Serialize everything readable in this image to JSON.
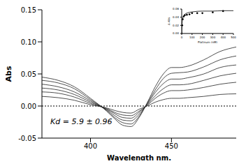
{
  "chart_data": [
    {
      "type": "line",
      "x_label": "Wavelength nm.",
      "y_label": "Abs",
      "annotation": "Kd = 5.9 ± 0.96",
      "x": [
        370,
        380,
        390,
        400,
        410,
        415,
        420,
        425,
        430,
        435,
        440,
        445,
        450,
        455,
        460,
        470,
        480,
        490
      ],
      "xlim": [
        370,
        490
      ],
      "xticks": [
        400,
        450
      ],
      "ylim": [
        -0.05,
        0.15
      ],
      "yticks": [
        {
          "value": -0.05,
          "label": "-0.05"
        },
        {
          "value": 0,
          "label": "0.00"
        },
        {
          "value": 0.05,
          "label": "0.05"
        },
        {
          "value": 0.1,
          "label": "0.10"
        },
        {
          "value": 0.15,
          "label": "0.15"
        }
      ],
      "series": [
        {
          "color": "#222222",
          "values": [
            0.045,
            0.04,
            0.03,
            0.012,
            -0.008,
            -0.02,
            -0.03,
            -0.032,
            -0.018,
            0.005,
            0.03,
            0.05,
            0.06,
            0.06,
            0.062,
            0.072,
            0.085,
            0.092
          ]
        },
        {
          "color": "#222222",
          "values": [
            0.04,
            0.036,
            0.027,
            0.01,
            -0.007,
            -0.018,
            -0.026,
            -0.028,
            -0.016,
            0.004,
            0.025,
            0.043,
            0.051,
            0.052,
            0.053,
            0.061,
            0.072,
            0.078
          ]
        },
        {
          "color": "#222222",
          "values": [
            0.034,
            0.03,
            0.022,
            0.008,
            -0.006,
            -0.015,
            -0.022,
            -0.023,
            -0.013,
            0.003,
            0.021,
            0.035,
            0.042,
            0.042,
            0.044,
            0.05,
            0.06,
            0.064
          ]
        },
        {
          "color": "#222222",
          "values": [
            0.028,
            0.025,
            0.018,
            0.006,
            -0.005,
            -0.012,
            -0.018,
            -0.019,
            -0.01,
            0.002,
            0.016,
            0.027,
            0.033,
            0.033,
            0.034,
            0.04,
            0.047,
            0.051
          ]
        },
        {
          "color": "#222222",
          "values": [
            0.022,
            0.02,
            0.014,
            0.004,
            -0.004,
            -0.01,
            -0.014,
            -0.015,
            -0.008,
            0.001,
            0.012,
            0.02,
            0.024,
            0.024,
            0.025,
            0.029,
            0.034,
            0.037
          ]
        },
        {
          "color": "#222222",
          "values": [
            0.015,
            0.013,
            0.009,
            0.002,
            -0.003,
            -0.007,
            -0.01,
            -0.011,
            -0.005,
            0.0,
            0.006,
            0.01,
            0.012,
            0.012,
            0.013,
            0.015,
            0.018,
            0.019
          ]
        }
      ]
    },
    {
      "type": "scatter",
      "x_label": "Platinum (nM)",
      "y_label": "Δ Abs",
      "xlim": [
        0,
        500
      ],
      "xticks": [
        0,
        100,
        200,
        300,
        400,
        500
      ],
      "ylim": [
        0,
        0.06
      ],
      "yticks": [
        {
          "value": 0,
          "label": "0.00"
        },
        {
          "value": 0.02,
          "label": "0.02"
        },
        {
          "value": 0.04,
          "label": "0.04"
        },
        {
          "value": 0.06,
          "label": "0.06"
        }
      ],
      "series": [
        {
          "type": "scatter",
          "marker": "circle",
          "color": "#000000",
          "x": [
            0,
            5,
            10,
            20,
            30,
            50,
            75,
            100,
            150,
            200,
            300,
            400
          ],
          "values": [
            0.0,
            0.02,
            0.035,
            0.042,
            0.045,
            0.046,
            0.047,
            0.05,
            0.05,
            0.05,
            0.052,
            0.055
          ]
        },
        {
          "type": "line",
          "color": "#000000",
          "x": [
            0,
            5,
            10,
            20,
            40,
            60,
            100,
            200,
            300,
            400,
            500
          ],
          "values": [
            0,
            0.028,
            0.037,
            0.044,
            0.049,
            0.051,
            0.053,
            0.055,
            0.055,
            0.056,
            0.056
          ]
        }
      ]
    }
  ]
}
